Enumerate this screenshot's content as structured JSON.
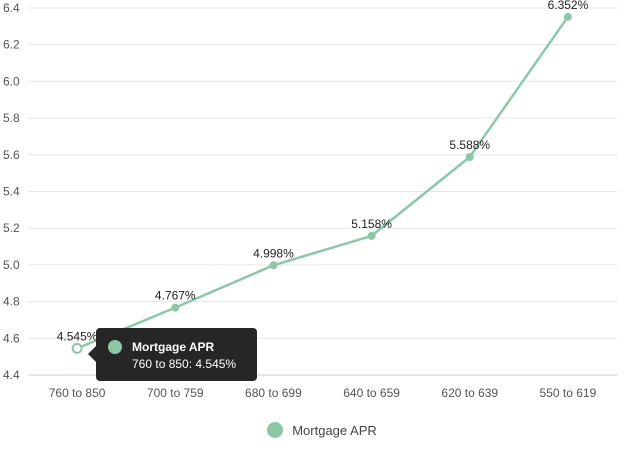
{
  "colors": {
    "series": "#8cc7a7",
    "grid": "#e6e6e6",
    "axis": "#cccccc"
  },
  "chart_data": {
    "type": "line",
    "categories": [
      "760 to 850",
      "700 to 759",
      "680 to 699",
      "640 to 659",
      "620 to 639",
      "550 to 619"
    ],
    "series": [
      {
        "name": "Mortgage APR",
        "values": [
          4.545,
          4.767,
          4.998,
          5.158,
          5.588,
          6.352
        ],
        "labels": [
          "4.545%",
          "4.767%",
          "4.998%",
          "5.158%",
          "5.588%",
          "6.352%"
        ]
      }
    ],
    "ylim": [
      4.4,
      6.4
    ],
    "yticks": [
      "4.4",
      "4.6",
      "4.8",
      "5.0",
      "5.2",
      "5.4",
      "5.6",
      "5.8",
      "6.0",
      "6.2",
      "6.4"
    ],
    "grid": true,
    "legend_position": "bottom"
  },
  "tooltip": {
    "title": "Mortgage APR",
    "text": "760 to 850: 4.545%"
  }
}
